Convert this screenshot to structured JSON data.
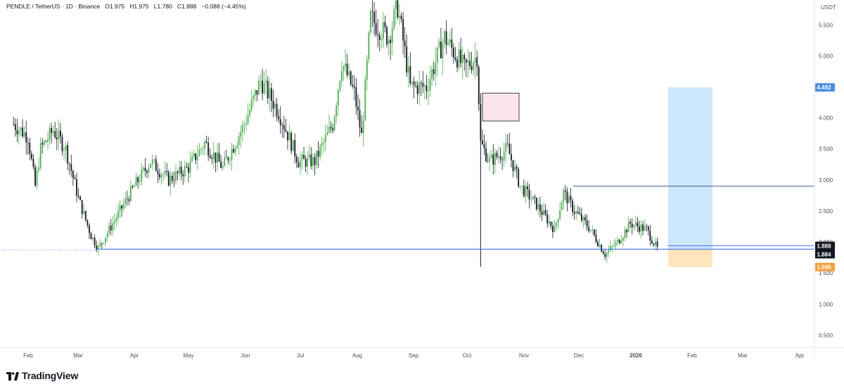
{
  "legend": {
    "symbol": "PENDLE / TetherUS · 1D · Binance",
    "open": "O1.975",
    "high": "H1.975",
    "low": "L1.780",
    "close": "C1.888",
    "change": "−0.088 (−4.45%)"
  },
  "currency": "USDT",
  "brand": "TradingView",
  "price_tags": {
    "target": "4.492",
    "last": "1.888",
    "level": "1.884",
    "stop": "1.596"
  },
  "colors": {
    "up": "#089981",
    "down": "#131722",
    "up_wick": "#4caf50",
    "level_line": "#2962ff",
    "target_zone": "#bbdefb",
    "stop_zone": "#ffe0b2",
    "supply_box": "#fce4ec",
    "tag_blue": "#2962ff",
    "tag_orange": "#f57c00"
  },
  "chart_data": {
    "type": "candlestick",
    "ylim": [
      0.3,
      5.9
    ],
    "y_ticks": [
      "5.500",
      "5.000",
      "4.500",
      "4.000",
      "3.500",
      "3.000",
      "2.500",
      "2.000",
      "1.500",
      "1.000",
      "0.500"
    ],
    "x_ticks": [
      "Feb",
      "Mar",
      "Apr",
      "May",
      "Jun",
      "Jul",
      "Aug",
      "Sep",
      "Oct",
      "Nov",
      "Dec",
      "2026",
      "Feb",
      "Mar",
      "Apr"
    ],
    "price_path": [
      [
        "Jan-25",
        3.9
      ],
      [
        "Feb-01",
        3.7
      ],
      [
        "Feb-05",
        2.9
      ],
      [
        "Feb-08",
        3.5
      ],
      [
        "Feb-15",
        3.8
      ],
      [
        "Feb-22",
        3.5
      ],
      [
        "Mar-01",
        2.7
      ],
      [
        "Mar-08",
        2.1
      ],
      [
        "Mar-12",
        1.9
      ],
      [
        "Mar-20",
        2.3
      ],
      [
        "Apr-01",
        2.9
      ],
      [
        "Apr-10",
        3.3
      ],
      [
        "Apr-20",
        3.0
      ],
      [
        "May-01",
        3.2
      ],
      [
        "May-10",
        3.6
      ],
      [
        "May-20",
        3.2
      ],
      [
        "Jun-01",
        3.9
      ],
      [
        "Jun-10",
        4.6
      ],
      [
        "Jun-20",
        4.1
      ],
      [
        "Jul-01",
        3.3
      ],
      [
        "Jul-10",
        3.3
      ],
      [
        "Jul-20",
        3.9
      ],
      [
        "Jul-25",
        4.9
      ],
      [
        "Aug-01",
        4.4
      ],
      [
        "Aug-05",
        3.7
      ],
      [
        "Aug-10",
        5.6
      ],
      [
        "Aug-20",
        5.3
      ],
      [
        "Aug-25",
        5.8
      ],
      [
        "Sep-01",
        4.5
      ],
      [
        "Sep-10",
        4.5
      ],
      [
        "Sep-20",
        5.3
      ],
      [
        "Oct-01",
        4.8
      ],
      [
        "Oct-08",
        5.0
      ],
      [
        "Oct-10",
        3.6
      ],
      [
        "Oct-15",
        3.3
      ],
      [
        "Oct-25",
        3.5
      ],
      [
        "Nov-01",
        2.9
      ],
      [
        "Nov-10",
        2.6
      ],
      [
        "Nov-20",
        2.2
      ],
      [
        "Nov-25",
        2.8
      ],
      [
        "Dec-01",
        2.5
      ],
      [
        "Dec-10",
        2.2
      ],
      [
        "Dec-18",
        1.8
      ],
      [
        "Dec-25",
        2.0
      ],
      [
        "Jan-01",
        2.3
      ],
      [
        "Jan-10",
        2.2
      ],
      [
        "Jan-16",
        1.888
      ]
    ],
    "annotations": {
      "horizontal_level": 1.884,
      "resistance_level": 2.9,
      "long_position": {
        "entry": 1.888,
        "target": 4.492,
        "stop": 1.596
      },
      "supply_zone": {
        "low": 3.95,
        "high": 4.4
      },
      "event_low": 1.6
    }
  }
}
